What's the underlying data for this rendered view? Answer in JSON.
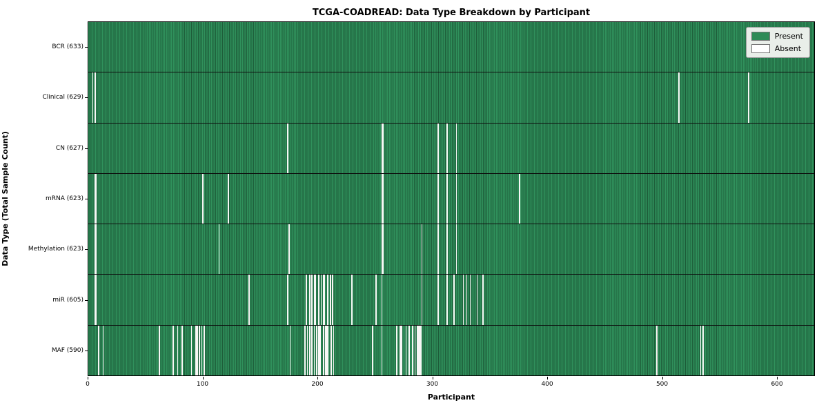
{
  "chart_data": {
    "type": "heatmap",
    "title": "TCGA-COADREAD: Data Type Breakdown by Participant",
    "xlabel": "Participant",
    "ylabel": "Data Type (Total Sample Count)",
    "x_ticks": [
      0,
      100,
      200,
      300,
      400,
      500,
      600
    ],
    "x_range": [
      0,
      633
    ],
    "n_participants": 633,
    "grid": false,
    "legend_position": "upper right",
    "colors": {
      "present": "#2e8b57",
      "present_edge": "#1d5c39",
      "absent": "#ffffff",
      "legend_bg": "#e9eee9"
    },
    "legend": [
      {
        "label": "Present",
        "color": "#2e8b57"
      },
      {
        "label": "Absent",
        "color": "#ffffff"
      }
    ],
    "rows": [
      {
        "label": "BCR (633)",
        "data_type": "BCR",
        "present": 633,
        "absent_count": 0,
        "absent_participants": []
      },
      {
        "label": "Clinical (629)",
        "data_type": "Clinical",
        "present": 629,
        "absent_count": 4,
        "absent_participants": [
          4,
          6,
          515,
          576
        ]
      },
      {
        "label": "CN (627)",
        "data_type": "CN",
        "present": 627,
        "absent_count": 6,
        "absent_participants": [
          174,
          256,
          257,
          305,
          313,
          321
        ]
      },
      {
        "label": "mRNA (623)",
        "data_type": "mRNA",
        "present": 623,
        "absent_count": 10,
        "absent_participants": [
          6,
          7,
          100,
          122,
          256,
          257,
          305,
          313,
          321,
          376
        ]
      },
      {
        "label": "Methylation (623)",
        "data_type": "Methylation",
        "present": 623,
        "absent_count": 10,
        "absent_participants": [
          6,
          7,
          114,
          175,
          256,
          257,
          291,
          305,
          313,
          321
        ]
      },
      {
        "label": "miR (605)",
        "data_type": "miR",
        "present": 605,
        "absent_count": 28,
        "absent_participants": [
          6,
          7,
          140,
          174,
          190,
          193,
          195,
          197,
          198,
          201,
          203,
          205,
          206,
          209,
          211,
          213,
          230,
          251,
          256,
          291,
          305,
          313,
          319,
          327,
          330,
          333,
          339,
          344
        ]
      },
      {
        "label": "MAF (590)",
        "data_type": "MAF",
        "present": 590,
        "absent_count": 43,
        "absent_participants": [
          9,
          13,
          62,
          74,
          78,
          82,
          90,
          94,
          95,
          97,
          99,
          101,
          176,
          189,
          191,
          193,
          195,
          197,
          199,
          201,
          202,
          205,
          207,
          208,
          209,
          212,
          214,
          248,
          256,
          269,
          272,
          273,
          277,
          280,
          283,
          285,
          287,
          288,
          289,
          290,
          496,
          534,
          536
        ]
      }
    ]
  }
}
